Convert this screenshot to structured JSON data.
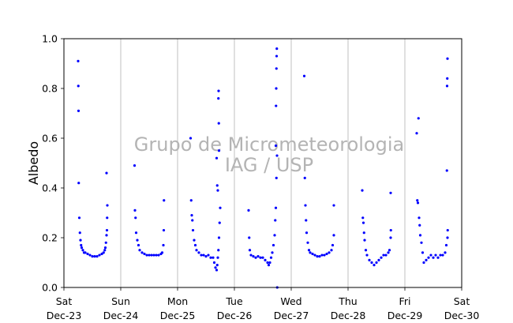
{
  "chart_data": {
    "type": "scatter",
    "title": "",
    "xlabel": "",
    "ylabel": "Albedo",
    "ylim": [
      0.0,
      1.0
    ],
    "yticks": [
      "0.0",
      "0.2",
      "0.4",
      "0.6",
      "0.8",
      "1.0"
    ],
    "xlim": [
      "2023-12-23",
      "2023-12-30"
    ],
    "xticks": [
      {
        "top": "Sat",
        "bottom": "Dec-23"
      },
      {
        "top": "Sun",
        "bottom": "Dec-24"
      },
      {
        "top": "Mon",
        "bottom": "Dec-25"
      },
      {
        "top": "Tue",
        "bottom": "Dec-26"
      },
      {
        "top": "Wed",
        "bottom": "Dec-27"
      },
      {
        "top": "Thu",
        "bottom": "Dec-28"
      },
      {
        "top": "Fri",
        "bottom": "Dec-29"
      },
      {
        "top": "Sat",
        "bottom": "Dec-30"
      }
    ],
    "vertical_grid": true,
    "marker_color": "#0000ff",
    "watermark": [
      "Grupo de Micrometeorologia",
      "IAG / USP"
    ],
    "series": [
      {
        "points": [
          [
            "2023-12-23 06:00",
            0.91
          ],
          [
            "2023-12-23 06:05",
            0.81
          ],
          [
            "2023-12-23 06:10",
            0.71
          ],
          [
            "2023-12-23 06:15",
            0.42
          ],
          [
            "2023-12-23 06:30",
            0.28
          ],
          [
            "2023-12-23 06:45",
            0.22
          ],
          [
            "2023-12-23 07:00",
            0.19
          ],
          [
            "2023-12-23 07:15",
            0.17
          ],
          [
            "2023-12-23 07:30",
            0.16
          ],
          [
            "2023-12-23 08:00",
            0.15
          ],
          [
            "2023-12-23 08:30",
            0.14
          ],
          [
            "2023-12-23 09:00",
            0.14
          ],
          [
            "2023-12-23 10:00",
            0.135
          ],
          [
            "2023-12-23 11:00",
            0.13
          ],
          [
            "2023-12-23 12:00",
            0.125
          ],
          [
            "2023-12-23 13:00",
            0.125
          ],
          [
            "2023-12-23 14:00",
            0.125
          ],
          [
            "2023-12-23 15:00",
            0.13
          ],
          [
            "2023-12-23 16:00",
            0.135
          ],
          [
            "2023-12-23 16:45",
            0.14
          ],
          [
            "2023-12-23 17:15",
            0.15
          ],
          [
            "2023-12-23 17:30",
            0.16
          ],
          [
            "2023-12-23 17:45",
            0.18
          ],
          [
            "2023-12-23 18:00",
            0.21
          ],
          [
            "2023-12-23 18:10",
            0.23
          ],
          [
            "2023-12-23 18:15",
            0.28
          ],
          [
            "2023-12-23 18:20",
            0.33
          ],
          [
            "2023-12-23 18:00",
            0.46
          ],
          [
            "2023-12-24 05:50",
            0.49
          ],
          [
            "2023-12-24 06:00",
            0.31
          ],
          [
            "2023-12-24 06:15",
            0.28
          ],
          [
            "2023-12-24 06:30",
            0.22
          ],
          [
            "2023-12-24 07:00",
            0.19
          ],
          [
            "2023-12-24 07:30",
            0.17
          ],
          [
            "2023-12-24 08:00",
            0.15
          ],
          [
            "2023-12-24 09:00",
            0.14
          ],
          [
            "2023-12-24 10:00",
            0.135
          ],
          [
            "2023-12-24 11:00",
            0.13
          ],
          [
            "2023-12-24 12:00",
            0.13
          ],
          [
            "2023-12-24 13:00",
            0.13
          ],
          [
            "2023-12-24 14:00",
            0.13
          ],
          [
            "2023-12-24 15:00",
            0.13
          ],
          [
            "2023-12-24 16:00",
            0.13
          ],
          [
            "2023-12-24 17:00",
            0.135
          ],
          [
            "2023-12-24 17:30",
            0.14
          ],
          [
            "2023-12-24 18:00",
            0.17
          ],
          [
            "2023-12-24 18:10",
            0.23
          ],
          [
            "2023-12-24 18:15",
            0.35
          ],
          [
            "2023-12-25 05:30",
            0.6
          ],
          [
            "2023-12-25 05:45",
            0.35
          ],
          [
            "2023-12-25 06:00",
            0.29
          ],
          [
            "2023-12-25 06:15",
            0.27
          ],
          [
            "2023-12-25 06:30",
            0.23
          ],
          [
            "2023-12-25 07:00",
            0.19
          ],
          [
            "2023-12-25 07:30",
            0.17
          ],
          [
            "2023-12-25 08:00",
            0.15
          ],
          [
            "2023-12-25 09:00",
            0.14
          ],
          [
            "2023-12-25 10:00",
            0.13
          ],
          [
            "2023-12-25 11:00",
            0.13
          ],
          [
            "2023-12-25 12:00",
            0.125
          ],
          [
            "2023-12-25 13:00",
            0.13
          ],
          [
            "2023-12-25 14:00",
            0.12
          ],
          [
            "2023-12-25 15:00",
            0.12
          ],
          [
            "2023-12-25 15:30",
            0.1
          ],
          [
            "2023-12-25 16:00",
            0.08
          ],
          [
            "2023-12-25 16:30",
            0.07
          ],
          [
            "2023-12-25 16:45",
            0.09
          ],
          [
            "2023-12-25 17:00",
            0.12
          ],
          [
            "2023-12-25 17:15",
            0.15
          ],
          [
            "2023-12-25 17:30",
            0.2
          ],
          [
            "2023-12-25 17:45",
            0.26
          ],
          [
            "2023-12-25 18:00",
            0.32
          ],
          [
            "2023-12-25 16:30",
            0.52
          ],
          [
            "2023-12-25 16:45",
            0.41
          ],
          [
            "2023-12-25 17:00",
            0.39
          ],
          [
            "2023-12-25 17:15",
            0.76
          ],
          [
            "2023-12-25 17:20",
            0.79
          ],
          [
            "2023-12-25 17:25",
            0.66
          ],
          [
            "2023-12-25 17:30",
            0.55
          ],
          [
            "2023-12-26 06:00",
            0.31
          ],
          [
            "2023-12-26 06:15",
            0.2
          ],
          [
            "2023-12-26 06:30",
            0.15
          ],
          [
            "2023-12-26 07:00",
            0.13
          ],
          [
            "2023-12-26 08:00",
            0.125
          ],
          [
            "2023-12-26 09:00",
            0.12
          ],
          [
            "2023-12-26 10:00",
            0.125
          ],
          [
            "2023-12-26 11:00",
            0.12
          ],
          [
            "2023-12-26 12:00",
            0.12
          ],
          [
            "2023-12-26 13:00",
            0.11
          ],
          [
            "2023-12-26 14:00",
            0.1
          ],
          [
            "2023-12-26 14:30",
            0.09
          ],
          [
            "2023-12-26 15:00",
            0.1
          ],
          [
            "2023-12-26 15:30",
            0.12
          ],
          [
            "2023-12-26 16:00",
            0.14
          ],
          [
            "2023-12-26 16:30",
            0.17
          ],
          [
            "2023-12-26 17:00",
            0.21
          ],
          [
            "2023-12-26 17:15",
            0.27
          ],
          [
            "2023-12-26 17:30",
            0.32
          ],
          [
            "2023-12-26 17:45",
            0.44
          ],
          [
            "2023-12-26 17:30",
            0.57
          ],
          [
            "2023-12-26 17:35",
            0.73
          ],
          [
            "2023-12-26 17:40",
            0.8
          ],
          [
            "2023-12-26 17:45",
            0.88
          ],
          [
            "2023-12-26 17:50",
            0.93
          ],
          [
            "2023-12-26 17:55",
            0.96
          ],
          [
            "2023-12-26 18:00",
            0.53
          ],
          [
            "2023-12-26 18:05",
            0.0
          ],
          [
            "2023-12-27 05:30",
            0.85
          ],
          [
            "2023-12-27 05:45",
            0.44
          ],
          [
            "2023-12-27 06:00",
            0.33
          ],
          [
            "2023-12-27 06:15",
            0.27
          ],
          [
            "2023-12-27 06:30",
            0.22
          ],
          [
            "2023-12-27 07:00",
            0.18
          ],
          [
            "2023-12-27 07:30",
            0.15
          ],
          [
            "2023-12-27 08:00",
            0.14
          ],
          [
            "2023-12-27 09:00",
            0.135
          ],
          [
            "2023-12-27 10:00",
            0.13
          ],
          [
            "2023-12-27 11:00",
            0.125
          ],
          [
            "2023-12-27 12:00",
            0.125
          ],
          [
            "2023-12-27 13:00",
            0.13
          ],
          [
            "2023-12-27 14:00",
            0.13
          ],
          [
            "2023-12-27 15:00",
            0.135
          ],
          [
            "2023-12-27 16:00",
            0.14
          ],
          [
            "2023-12-27 17:00",
            0.15
          ],
          [
            "2023-12-27 17:30",
            0.17
          ],
          [
            "2023-12-27 18:00",
            0.21
          ],
          [
            "2023-12-27 18:00",
            0.33
          ],
          [
            "2023-12-28 06:00",
            0.39
          ],
          [
            "2023-12-28 06:15",
            0.28
          ],
          [
            "2023-12-28 06:30",
            0.26
          ],
          [
            "2023-12-28 06:45",
            0.22
          ],
          [
            "2023-12-28 07:00",
            0.19
          ],
          [
            "2023-12-28 07:30",
            0.15
          ],
          [
            "2023-12-28 08:00",
            0.13
          ],
          [
            "2023-12-28 09:00",
            0.11
          ],
          [
            "2023-12-28 10:00",
            0.1
          ],
          [
            "2023-12-28 11:00",
            0.09
          ],
          [
            "2023-12-28 12:00",
            0.1
          ],
          [
            "2023-12-28 13:00",
            0.11
          ],
          [
            "2023-12-28 14:00",
            0.12
          ],
          [
            "2023-12-28 15:00",
            0.13
          ],
          [
            "2023-12-28 16:00",
            0.13
          ],
          [
            "2023-12-28 17:00",
            0.14
          ],
          [
            "2023-12-28 17:30",
            0.15
          ],
          [
            "2023-12-28 18:00",
            0.2
          ],
          [
            "2023-12-28 18:05",
            0.23
          ],
          [
            "2023-12-28 18:00",
            0.38
          ],
          [
            "2023-12-29 05:00",
            0.62
          ],
          [
            "2023-12-29 05:15",
            0.35
          ],
          [
            "2023-12-29 05:30",
            0.34
          ],
          [
            "2023-12-29 05:45",
            0.68
          ],
          [
            "2023-12-29 06:00",
            0.28
          ],
          [
            "2023-12-29 06:15",
            0.25
          ],
          [
            "2023-12-29 06:30",
            0.21
          ],
          [
            "2023-12-29 07:00",
            0.18
          ],
          [
            "2023-12-29 07:30",
            0.14
          ],
          [
            "2023-12-29 08:00",
            0.1
          ],
          [
            "2023-12-29 09:00",
            0.11
          ],
          [
            "2023-12-29 10:00",
            0.12
          ],
          [
            "2023-12-29 11:00",
            0.13
          ],
          [
            "2023-12-29 12:00",
            0.12
          ],
          [
            "2023-12-29 13:00",
            0.13
          ],
          [
            "2023-12-29 14:00",
            0.12
          ],
          [
            "2023-12-29 15:00",
            0.13
          ],
          [
            "2023-12-29 16:00",
            0.13
          ],
          [
            "2023-12-29 17:00",
            0.14
          ],
          [
            "2023-12-29 17:30",
            0.17
          ],
          [
            "2023-12-29 18:00",
            0.2
          ],
          [
            "2023-12-29 18:05",
            0.23
          ],
          [
            "2023-12-29 17:45",
            0.47
          ],
          [
            "2023-12-29 17:50",
            0.81
          ],
          [
            "2023-12-29 17:55",
            0.84
          ],
          [
            "2023-12-29 18:00",
            0.92
          ]
        ]
      }
    ]
  }
}
